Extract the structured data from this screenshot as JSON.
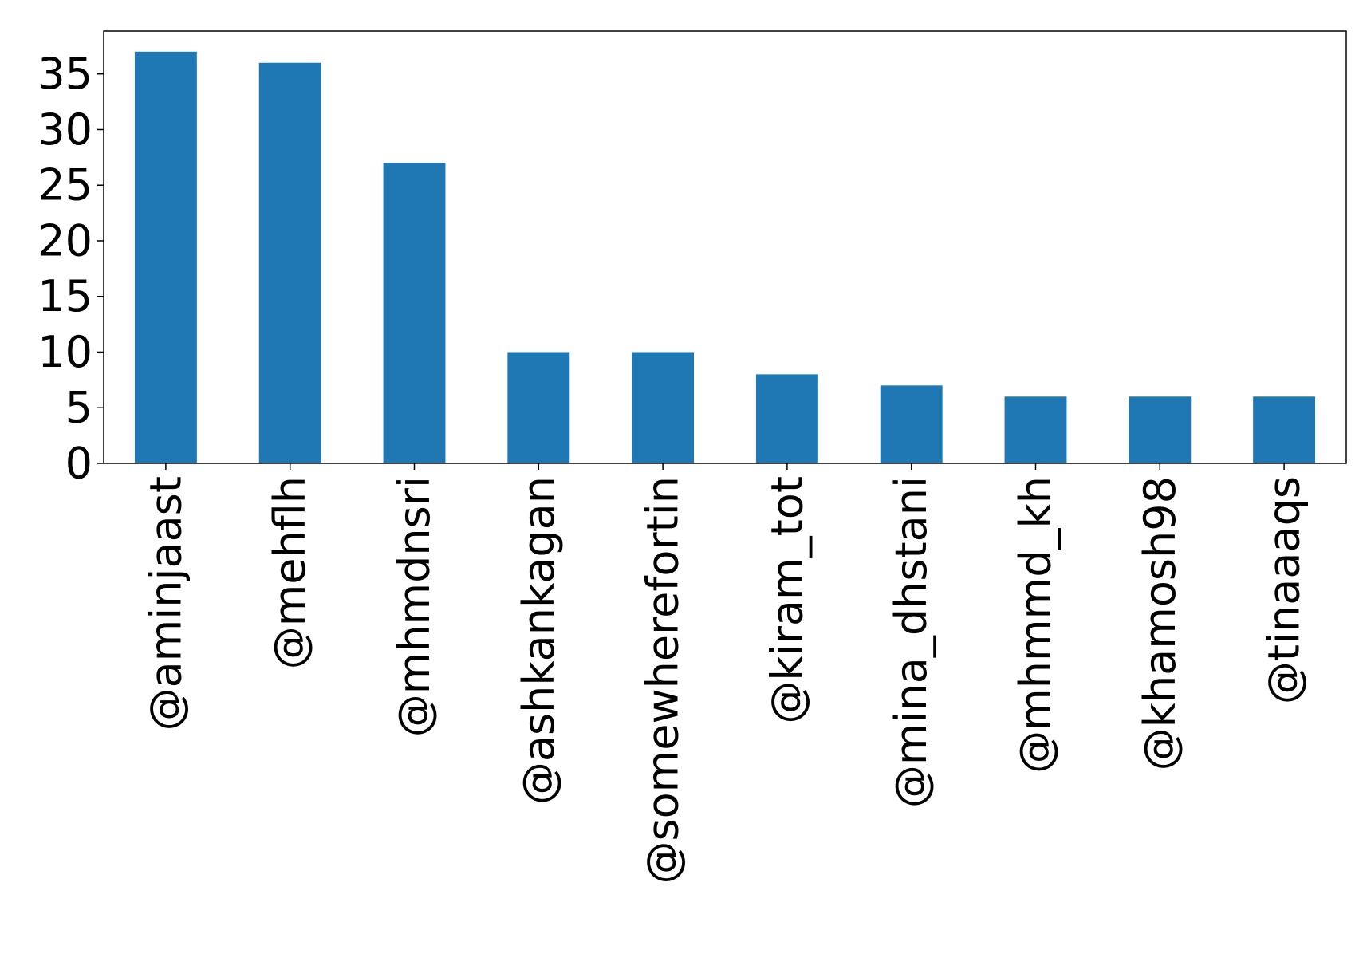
{
  "chart_data": {
    "type": "bar",
    "title": "",
    "xlabel": "",
    "ylabel": "",
    "categories": [
      "@aminjaast",
      "@mehflh",
      "@mhmdnsri",
      "@ashkankagan",
      "@somewherefortin",
      "@kiram_tot",
      "@mina_dhstani",
      "@mhmmd_kh",
      "@khamosh98",
      "@tinaaaqs"
    ],
    "values": [
      37,
      36,
      27,
      10,
      10,
      8,
      7,
      6,
      6,
      6
    ],
    "ylim": [
      0,
      38.85
    ],
    "yticks": [
      0,
      5,
      10,
      15,
      20,
      25,
      30,
      35
    ],
    "grid": false,
    "bar_color": "#1f77b4"
  }
}
